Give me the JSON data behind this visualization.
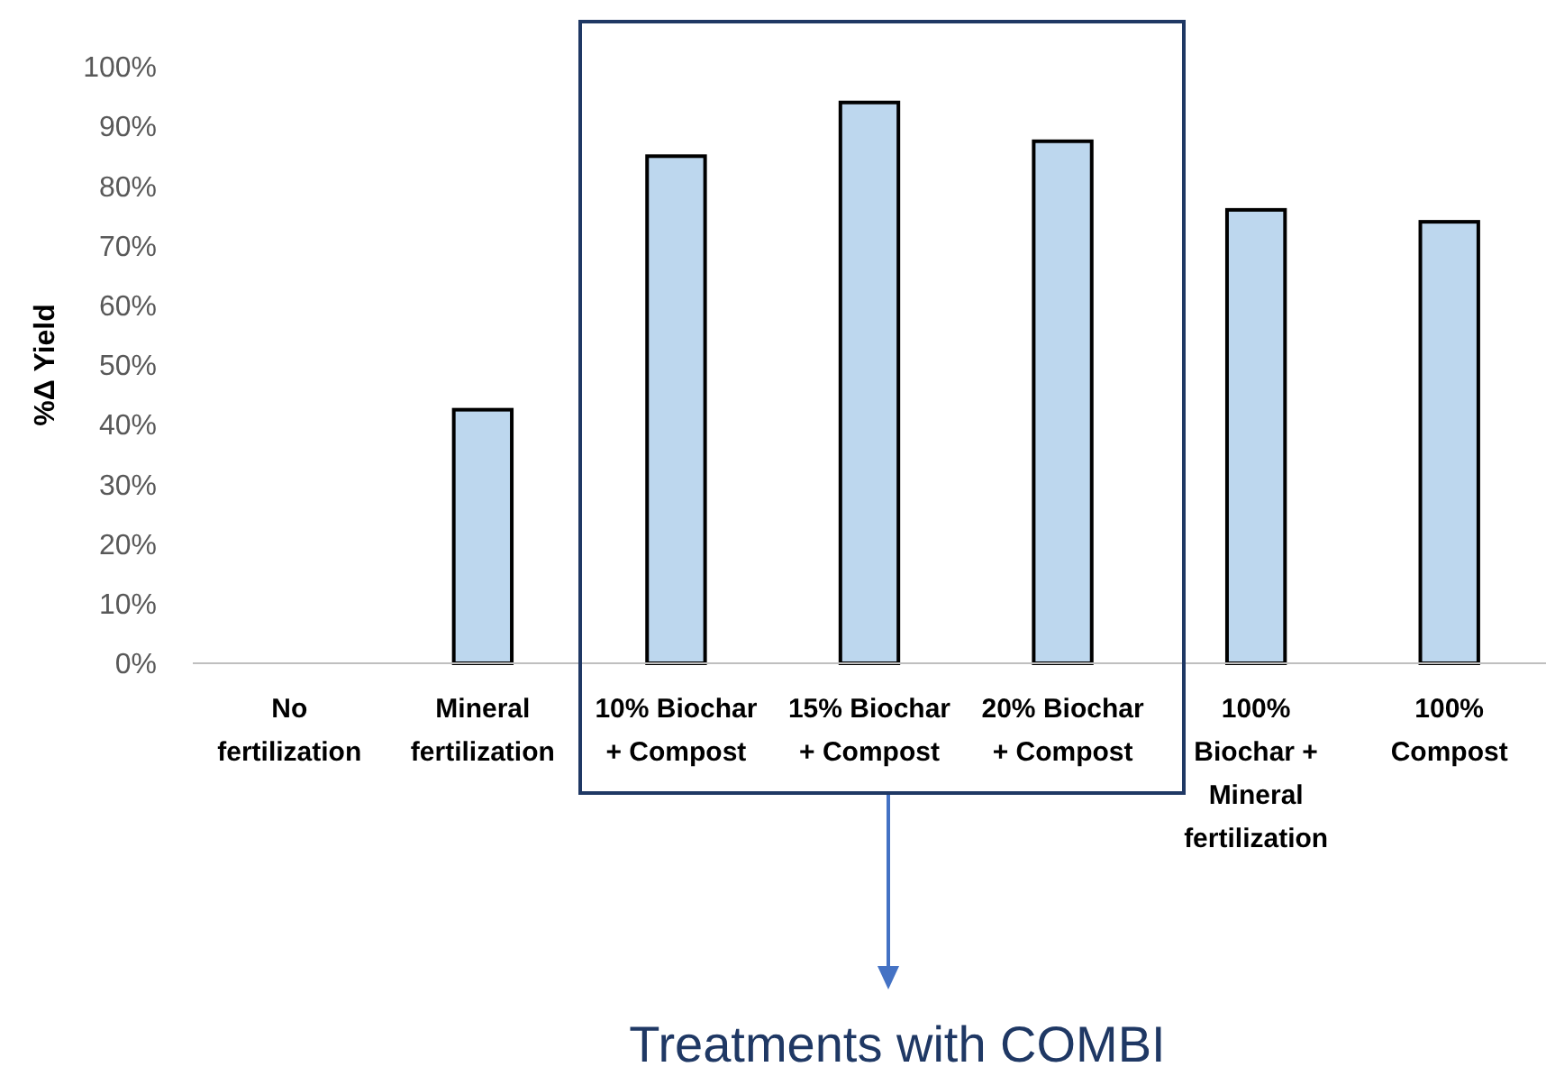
{
  "chart_data": {
    "type": "bar",
    "ylabel": "%Δ Yield",
    "categories": [
      "No\nfertilization",
      "Mineral\nfertilization",
      "10% Biochar\n+ Compost",
      "15% Biochar\n+ Compost",
      "20% Biochar\n+ Compost",
      "100%\nBiochar +\nMineral\nfertilization",
      "100%\nCompost"
    ],
    "values": [
      0,
      42.5,
      85,
      94,
      87.5,
      76,
      74
    ],
    "color": "#bdd7ee",
    "ylim": [
      0,
      100
    ],
    "yticks": [
      {
        "value": 0,
        "label": "0%"
      },
      {
        "value": 10,
        "label": "10%"
      },
      {
        "value": 20,
        "label": "20%"
      },
      {
        "value": 30,
        "label": "30%"
      },
      {
        "value": 40,
        "label": "40%"
      },
      {
        "value": 50,
        "label": "50%"
      },
      {
        "value": 60,
        "label": "60%"
      },
      {
        "value": 70,
        "label": "70%"
      },
      {
        "value": 80,
        "label": "80%"
      },
      {
        "value": 90,
        "label": "90%"
      },
      {
        "value": 100,
        "label": "100%"
      }
    ],
    "grid": false,
    "annotations": [
      "Treatments with COMBI"
    ]
  }
}
